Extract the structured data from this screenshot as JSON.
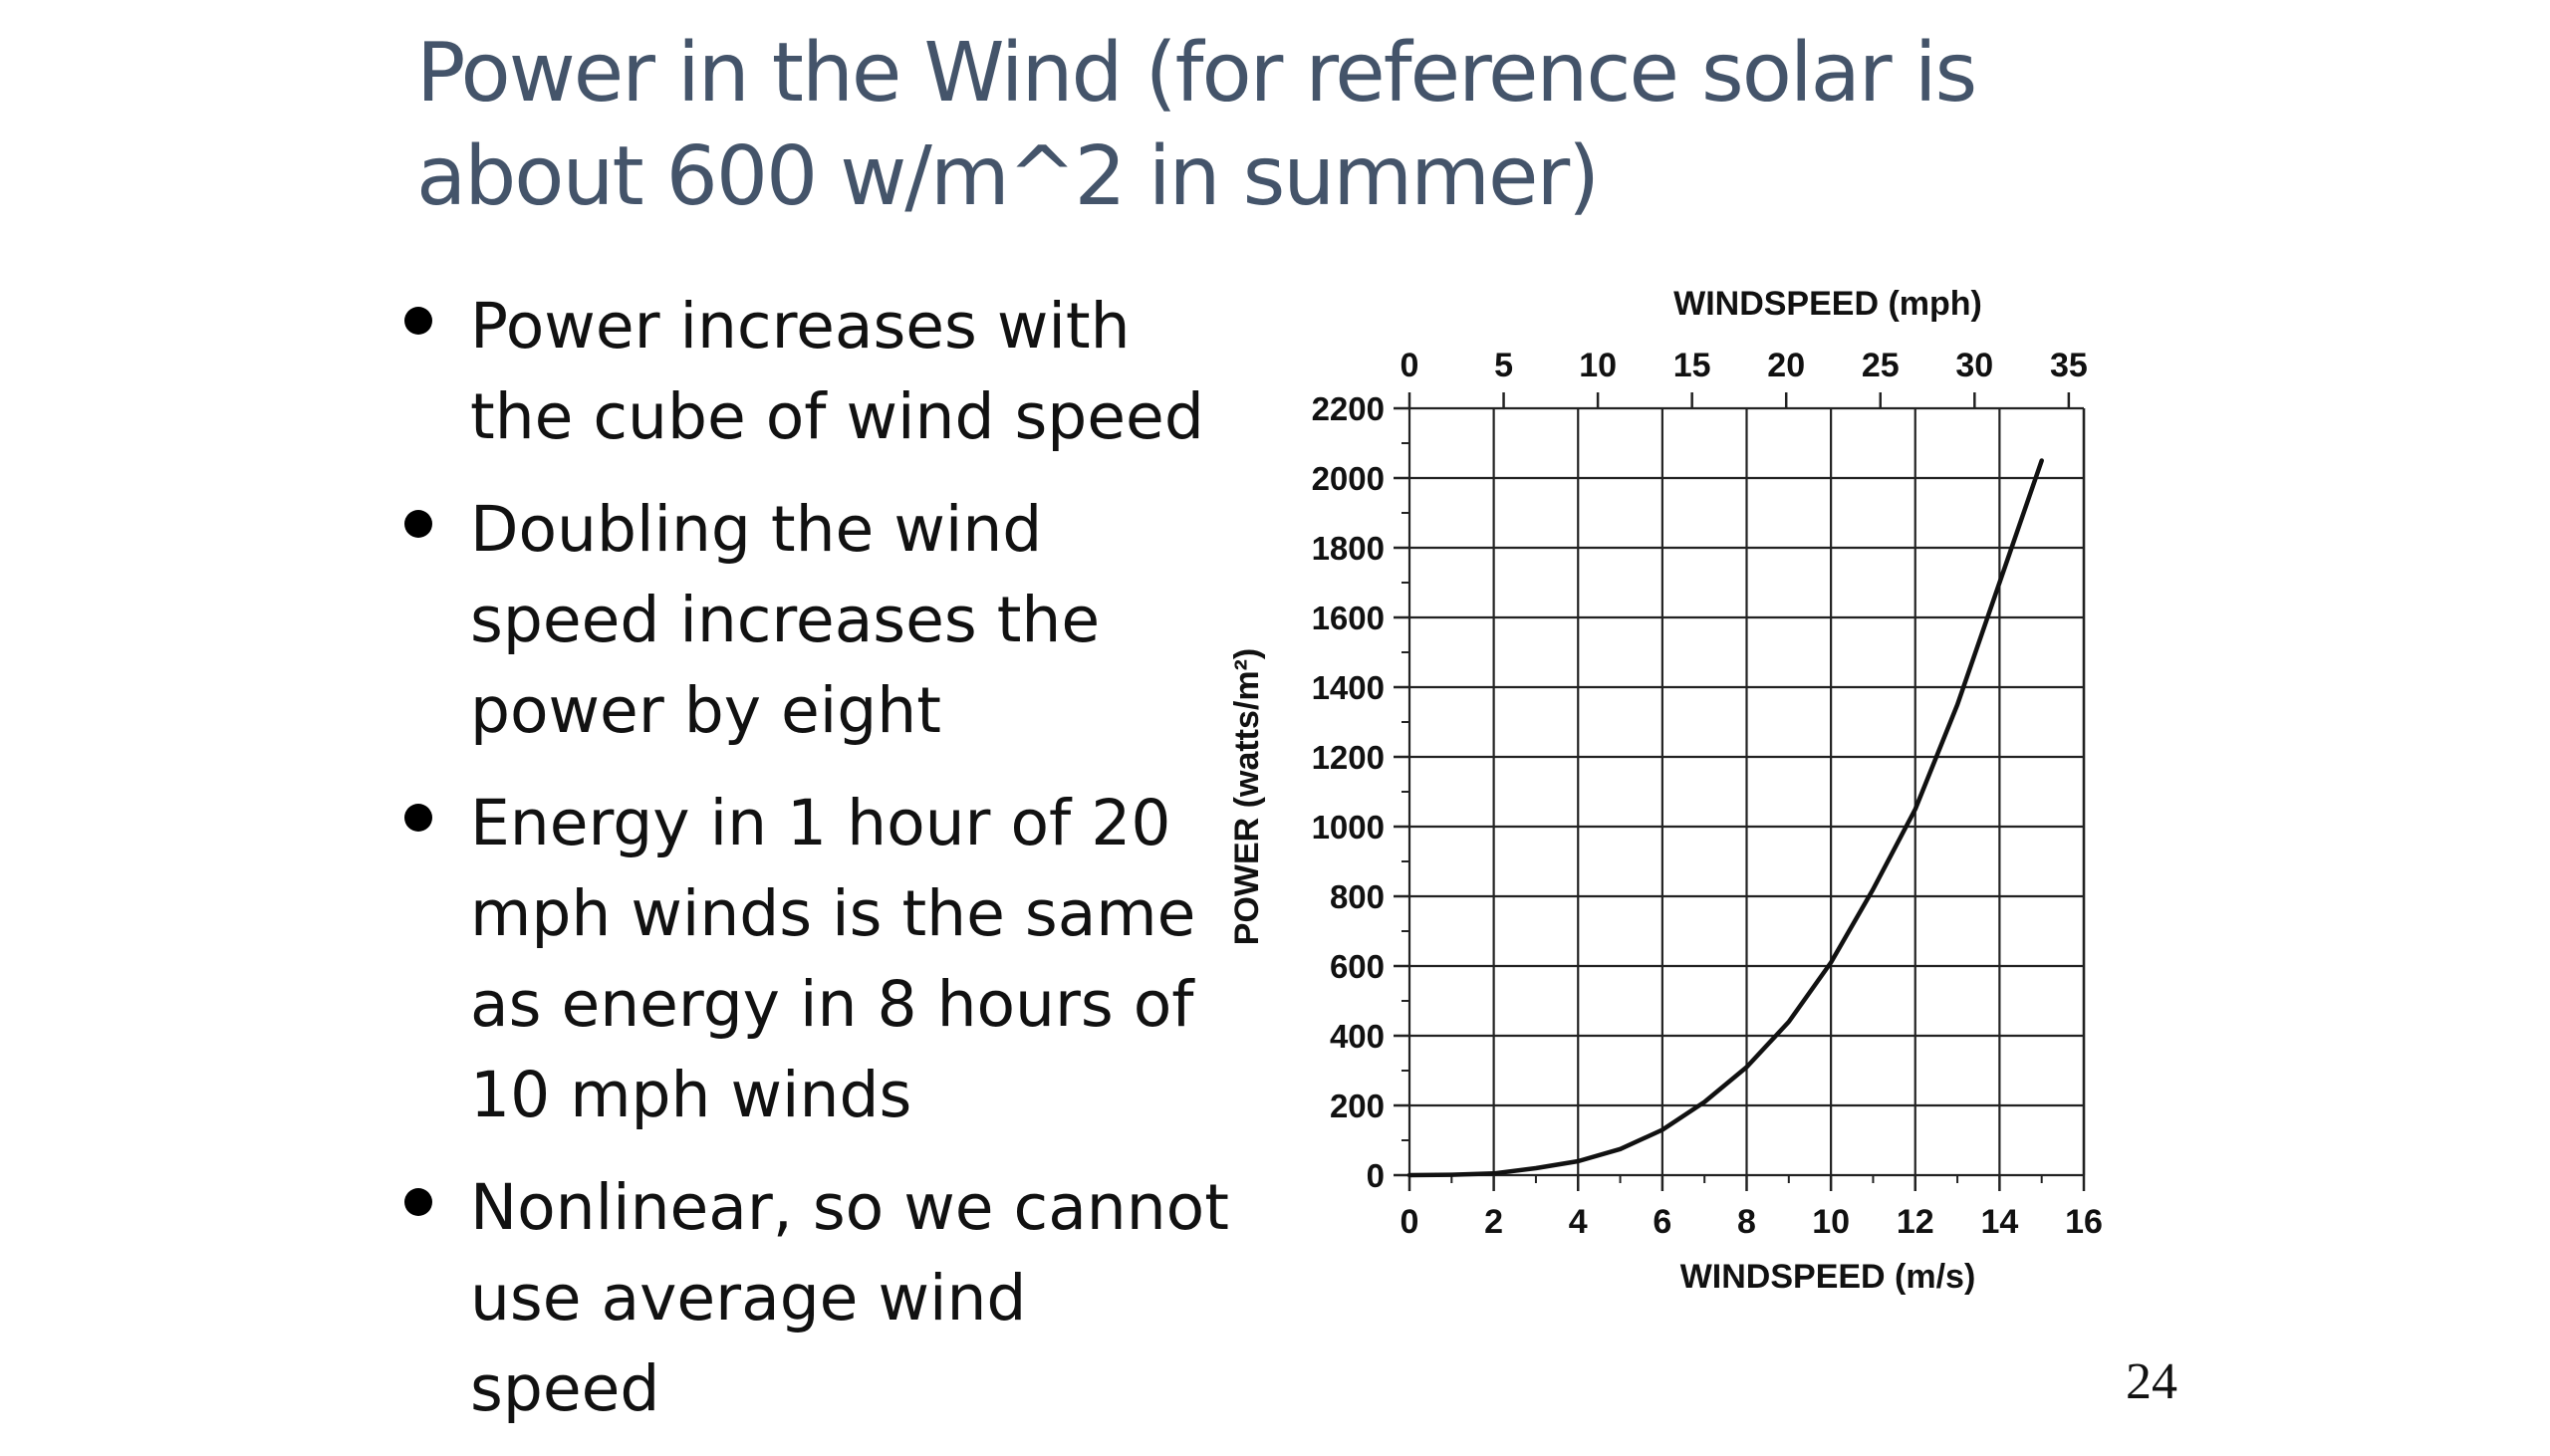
{
  "slide": {
    "title": "Power in the Wind (for reference solar is about 600 w/m^2 in summer)",
    "bullets": [
      "Power increases with the cube of wind speed",
      "Doubling the wind speed increases the power by eight",
      "Energy in 1 hour of 20 mph winds is the same as energy in 8 hours of 10 mph winds",
      "Nonlinear, so we cannot use average wind speed"
    ],
    "page_number": "24"
  },
  "chart_data": {
    "type": "line",
    "title": "",
    "xlabel": "WINDSPEED (m/s)",
    "x2label": "WINDSPEED (mph)",
    "ylabel": "POWER (watts/m²)",
    "xlim": [
      0,
      16
    ],
    "x2lim": [
      0,
      35.8
    ],
    "ylim": [
      0,
      2200
    ],
    "x_ticks": [
      0,
      2,
      4,
      6,
      8,
      10,
      12,
      14,
      16
    ],
    "x2_ticks": [
      0,
      5,
      10,
      15,
      20,
      25,
      30,
      35
    ],
    "y_ticks": [
      0,
      200,
      400,
      600,
      800,
      1000,
      1200,
      1400,
      1600,
      1800,
      2000,
      2200
    ],
    "grid": true,
    "series": [
      {
        "x": [
          0,
          1,
          2,
          3,
          4,
          5,
          6,
          7,
          8,
          9,
          10,
          11,
          12,
          13,
          14,
          15
        ],
        "y": [
          0,
          1,
          5,
          20,
          40,
          75,
          130,
          210,
          310,
          440,
          610,
          820,
          1050,
          1350,
          1700,
          2050
        ]
      }
    ],
    "colors": {
      "line": "#111111",
      "grid": "#222222",
      "text": "#111111"
    }
  }
}
